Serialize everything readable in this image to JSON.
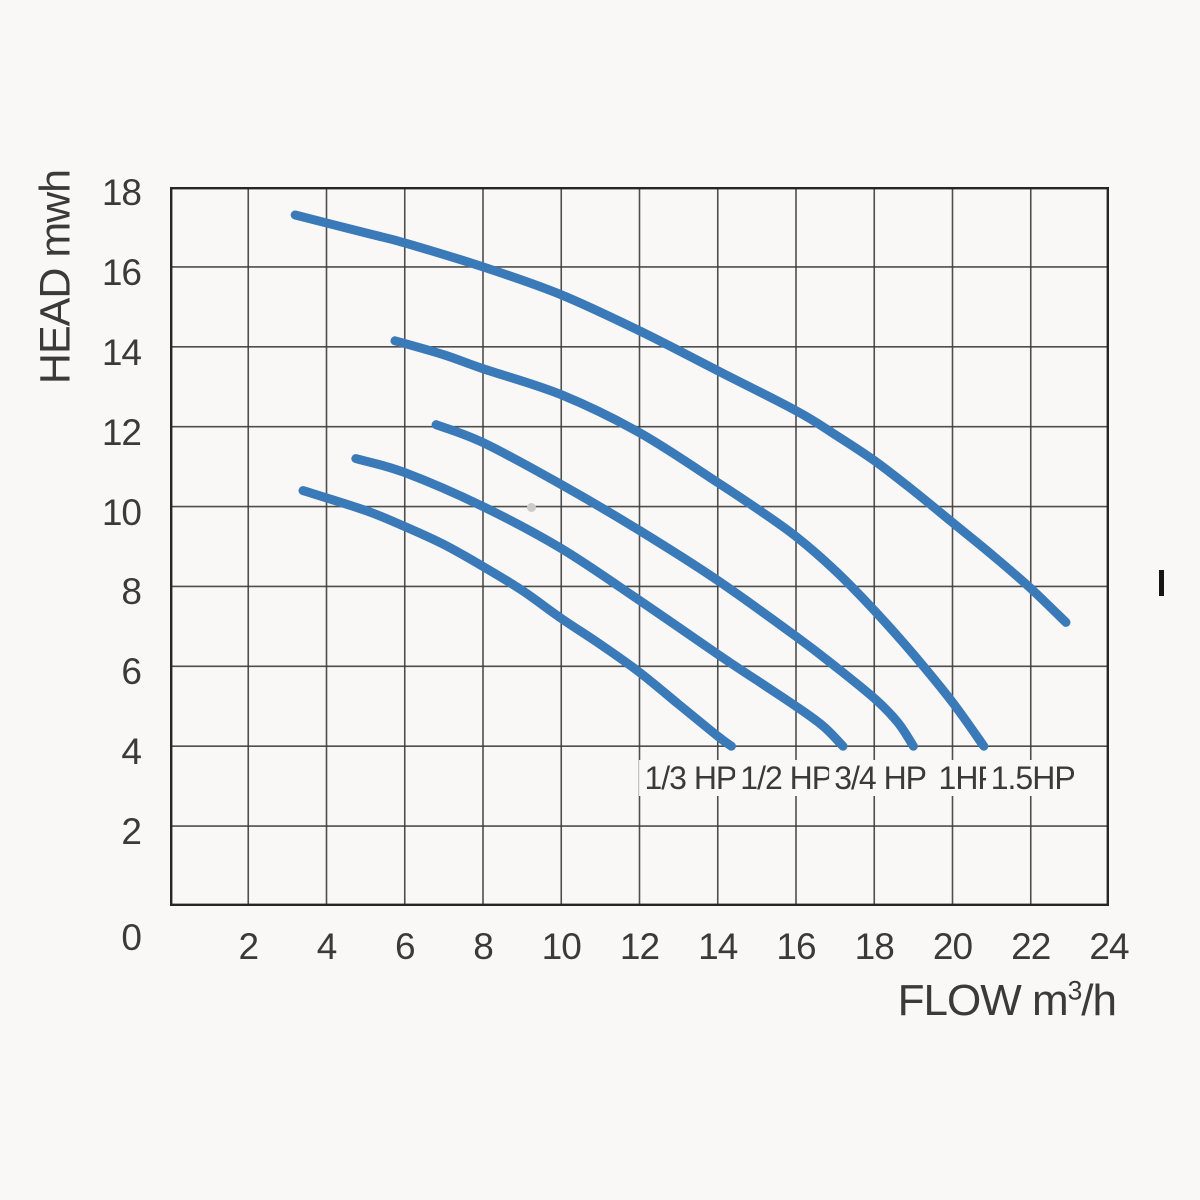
{
  "figure": {
    "bg": "#f9f8f6",
    "grid_color": "#3c3c3c",
    "frame_color": "#262626",
    "curve_color": "#3b7ab8",
    "text_color": "#3a3a3a"
  },
  "axes": {
    "y_title": "HEAD mwh",
    "x_title_prefix": "FLOW  m",
    "x_title_sup": "3",
    "x_title_suffix": "/h",
    "x_min": 0,
    "x_max": 24,
    "x_tick_step": 2,
    "y_min": 0,
    "y_max": 18,
    "y_tick_step": 2,
    "x_ticks": [
      2,
      4,
      6,
      8,
      10,
      12,
      14,
      16,
      18,
      20,
      22,
      24
    ],
    "y_ticks": [
      0,
      2,
      4,
      6,
      8,
      10,
      12,
      14,
      16,
      18
    ]
  },
  "chart_data": {
    "type": "line",
    "title": "",
    "xlabel": "FLOW m³/h",
    "ylabel": "HEAD mwh",
    "xlim": [
      0,
      24
    ],
    "ylim": [
      0,
      18
    ],
    "grid": true,
    "grid_step": 2,
    "legend_position": "inline-labels-below-curves",
    "series": [
      {
        "name": "1/3 HP",
        "label_x": 13.3,
        "label_y": 3.2,
        "points": [
          [
            3.4,
            10.4
          ],
          [
            5,
            9.9
          ],
          [
            6,
            9.5
          ],
          [
            7,
            9.05
          ],
          [
            8,
            8.5
          ],
          [
            9,
            7.9
          ],
          [
            10,
            7.2
          ],
          [
            11,
            6.55
          ],
          [
            12,
            5.85
          ],
          [
            13,
            5.05
          ],
          [
            14,
            4.25
          ],
          [
            14.35,
            4.0
          ]
        ]
      },
      {
        "name": "1/2 HP",
        "label_x": 15.75,
        "label_y": 3.2,
        "points": [
          [
            4.75,
            11.2
          ],
          [
            6,
            10.85
          ],
          [
            8,
            10.0
          ],
          [
            10,
            8.95
          ],
          [
            12,
            7.65
          ],
          [
            14,
            6.3
          ],
          [
            15,
            5.65
          ],
          [
            16,
            5.0
          ],
          [
            16.7,
            4.5
          ],
          [
            17.2,
            4.0
          ]
        ]
      },
      {
        "name": "3/4 HP",
        "label_x": 18.15,
        "label_y": 3.2,
        "points": [
          [
            6.8,
            12.05
          ],
          [
            8,
            11.6
          ],
          [
            10,
            10.55
          ],
          [
            12,
            9.4
          ],
          [
            14,
            8.15
          ],
          [
            16,
            6.75
          ],
          [
            17,
            6.0
          ],
          [
            18,
            5.2
          ],
          [
            18.6,
            4.6
          ],
          [
            19.0,
            4.0
          ]
        ]
      },
      {
        "name": "1HP",
        "label_x": 20.4,
        "label_y": 3.2,
        "points": [
          [
            5.75,
            14.15
          ],
          [
            7,
            13.8
          ],
          [
            8,
            13.45
          ],
          [
            10,
            12.8
          ],
          [
            12,
            11.85
          ],
          [
            14,
            10.6
          ],
          [
            15,
            9.95
          ],
          [
            16,
            9.25
          ],
          [
            17,
            8.4
          ],
          [
            18,
            7.4
          ],
          [
            19,
            6.3
          ],
          [
            20,
            5.1
          ],
          [
            20.8,
            4.0
          ]
        ]
      },
      {
        "name": "1.5HP",
        "label_x": 22.05,
        "label_y": 3.2,
        "points": [
          [
            3.2,
            17.3
          ],
          [
            5,
            16.85
          ],
          [
            6,
            16.6
          ],
          [
            8,
            16.0
          ],
          [
            10,
            15.3
          ],
          [
            12,
            14.4
          ],
          [
            14,
            13.4
          ],
          [
            16,
            12.4
          ],
          [
            17,
            11.8
          ],
          [
            18,
            11.15
          ],
          [
            19,
            10.4
          ],
          [
            20,
            9.6
          ],
          [
            21,
            8.8
          ],
          [
            22,
            7.95
          ],
          [
            22.9,
            7.1
          ]
        ]
      }
    ]
  }
}
